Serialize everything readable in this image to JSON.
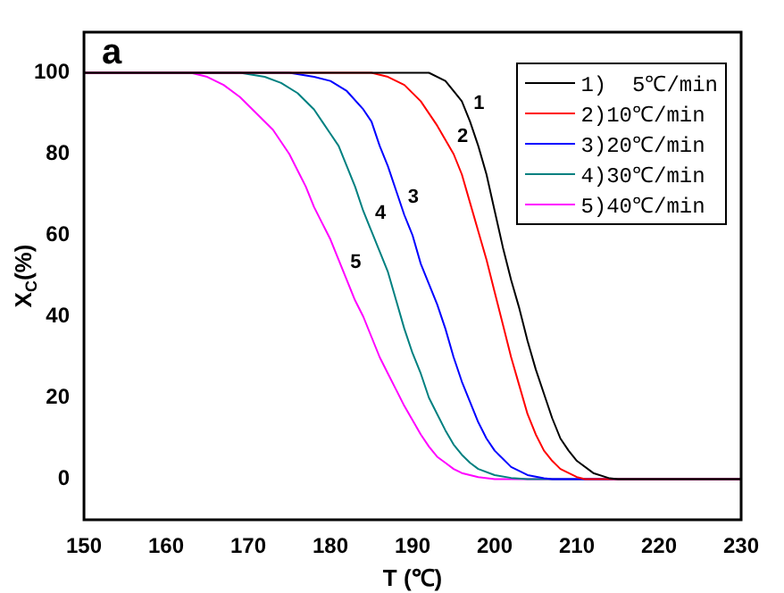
{
  "chart_data": {
    "type": "line",
    "title": "a",
    "xlabel": "T (℃)",
    "ylabel": "X$_{C}$(%)",
    "xlim": [
      150,
      230
    ],
    "xticks": [
      150,
      160,
      170,
      180,
      190,
      200,
      210,
      220,
      230
    ],
    "ylim": [
      -10,
      110
    ],
    "yticks": [
      0,
      20,
      40,
      60,
      80,
      100
    ],
    "grid": false,
    "legend": "top right",
    "marker": "none",
    "line_style": "solid",
    "series": [
      {
        "name": "1)  5℃/min",
        "color": "#000000",
        "x": [
          150,
          192,
          194,
          196,
          197,
          198,
          199,
          200,
          201,
          202,
          203,
          204,
          205,
          206,
          207,
          208,
          209,
          210,
          212,
          214,
          215,
          230
        ],
        "values": [
          100,
          100,
          98,
          93,
          88,
          82,
          75,
          66,
          57,
          49,
          42,
          34,
          27,
          21,
          15,
          10,
          7,
          4.5,
          1.5,
          0.2,
          0,
          0
        ]
      },
      {
        "name": "2)10℃/min",
        "color": "#ff0000",
        "x": [
          150,
          185,
          187,
          189,
          191,
          193,
          195,
          196,
          197,
          198,
          199,
          200,
          201,
          202,
          203,
          204,
          205,
          206,
          207,
          208,
          210,
          211,
          230
        ],
        "values": [
          100,
          100,
          99,
          97,
          93,
          87,
          80,
          75,
          68,
          61,
          54,
          46,
          38,
          30,
          23,
          16,
          11,
          7,
          4.5,
          2.5,
          0.5,
          0,
          0
        ]
      },
      {
        "name": "3)20℃/min",
        "color": "#0000ff",
        "x": [
          150,
          175,
          178,
          180,
          182,
          184,
          185,
          186,
          187,
          188,
          189,
          190,
          191,
          192,
          193,
          194,
          195,
          196,
          197,
          198,
          199,
          200,
          201,
          202,
          204,
          206,
          207,
          230
        ],
        "values": [
          100,
          100,
          99,
          98,
          95.5,
          91,
          88,
          82,
          77,
          71,
          65,
          60,
          53,
          48,
          43,
          37,
          30,
          24,
          19,
          14,
          10,
          7,
          5,
          3,
          1,
          0.2,
          0,
          0
        ]
      },
      {
        "name": "4)30℃/min",
        "color": "#008080",
        "x": [
          150,
          169,
          172,
          174,
          176,
          178,
          179,
          180,
          181,
          182,
          183,
          184,
          185,
          186,
          187,
          188,
          189,
          190,
          191,
          192,
          193,
          194,
          195,
          196,
          197,
          198,
          200,
          202,
          204,
          230
        ],
        "values": [
          100,
          100,
          99,
          97.5,
          95,
          91,
          88,
          85,
          82,
          77,
          72,
          66,
          61,
          56,
          51,
          44,
          37,
          31,
          26,
          20,
          16,
          12,
          8.5,
          6,
          4,
          2.5,
          1,
          0.3,
          0,
          0
        ]
      },
      {
        "name": "5)40℃/min",
        "color": "#ff00ff",
        "x": [
          150,
          163,
          165,
          167,
          169,
          171,
          173,
          175,
          176,
          177,
          178,
          179,
          180,
          181,
          182,
          183,
          184,
          185,
          186,
          187,
          188,
          189,
          190,
          191,
          192,
          193,
          194,
          195,
          196,
          198,
          200,
          230
        ],
        "values": [
          100,
          100,
          99,
          97,
          94,
          90,
          86,
          80,
          76,
          72,
          67,
          63,
          59,
          54,
          49,
          44,
          40,
          35,
          30,
          26,
          22,
          18,
          14.5,
          11,
          8,
          5.5,
          4,
          2.5,
          1.5,
          0.5,
          0,
          0
        ]
      }
    ],
    "annotations": [
      {
        "text": "1",
        "x": 197,
        "y": 88
      },
      {
        "text": "2",
        "x": 195,
        "y": 80
      },
      {
        "text": "3",
        "x": 189,
        "y": 65
      },
      {
        "text": "4",
        "x": 185,
        "y": 61
      },
      {
        "text": "5",
        "x": 182,
        "y": 49
      }
    ]
  }
}
